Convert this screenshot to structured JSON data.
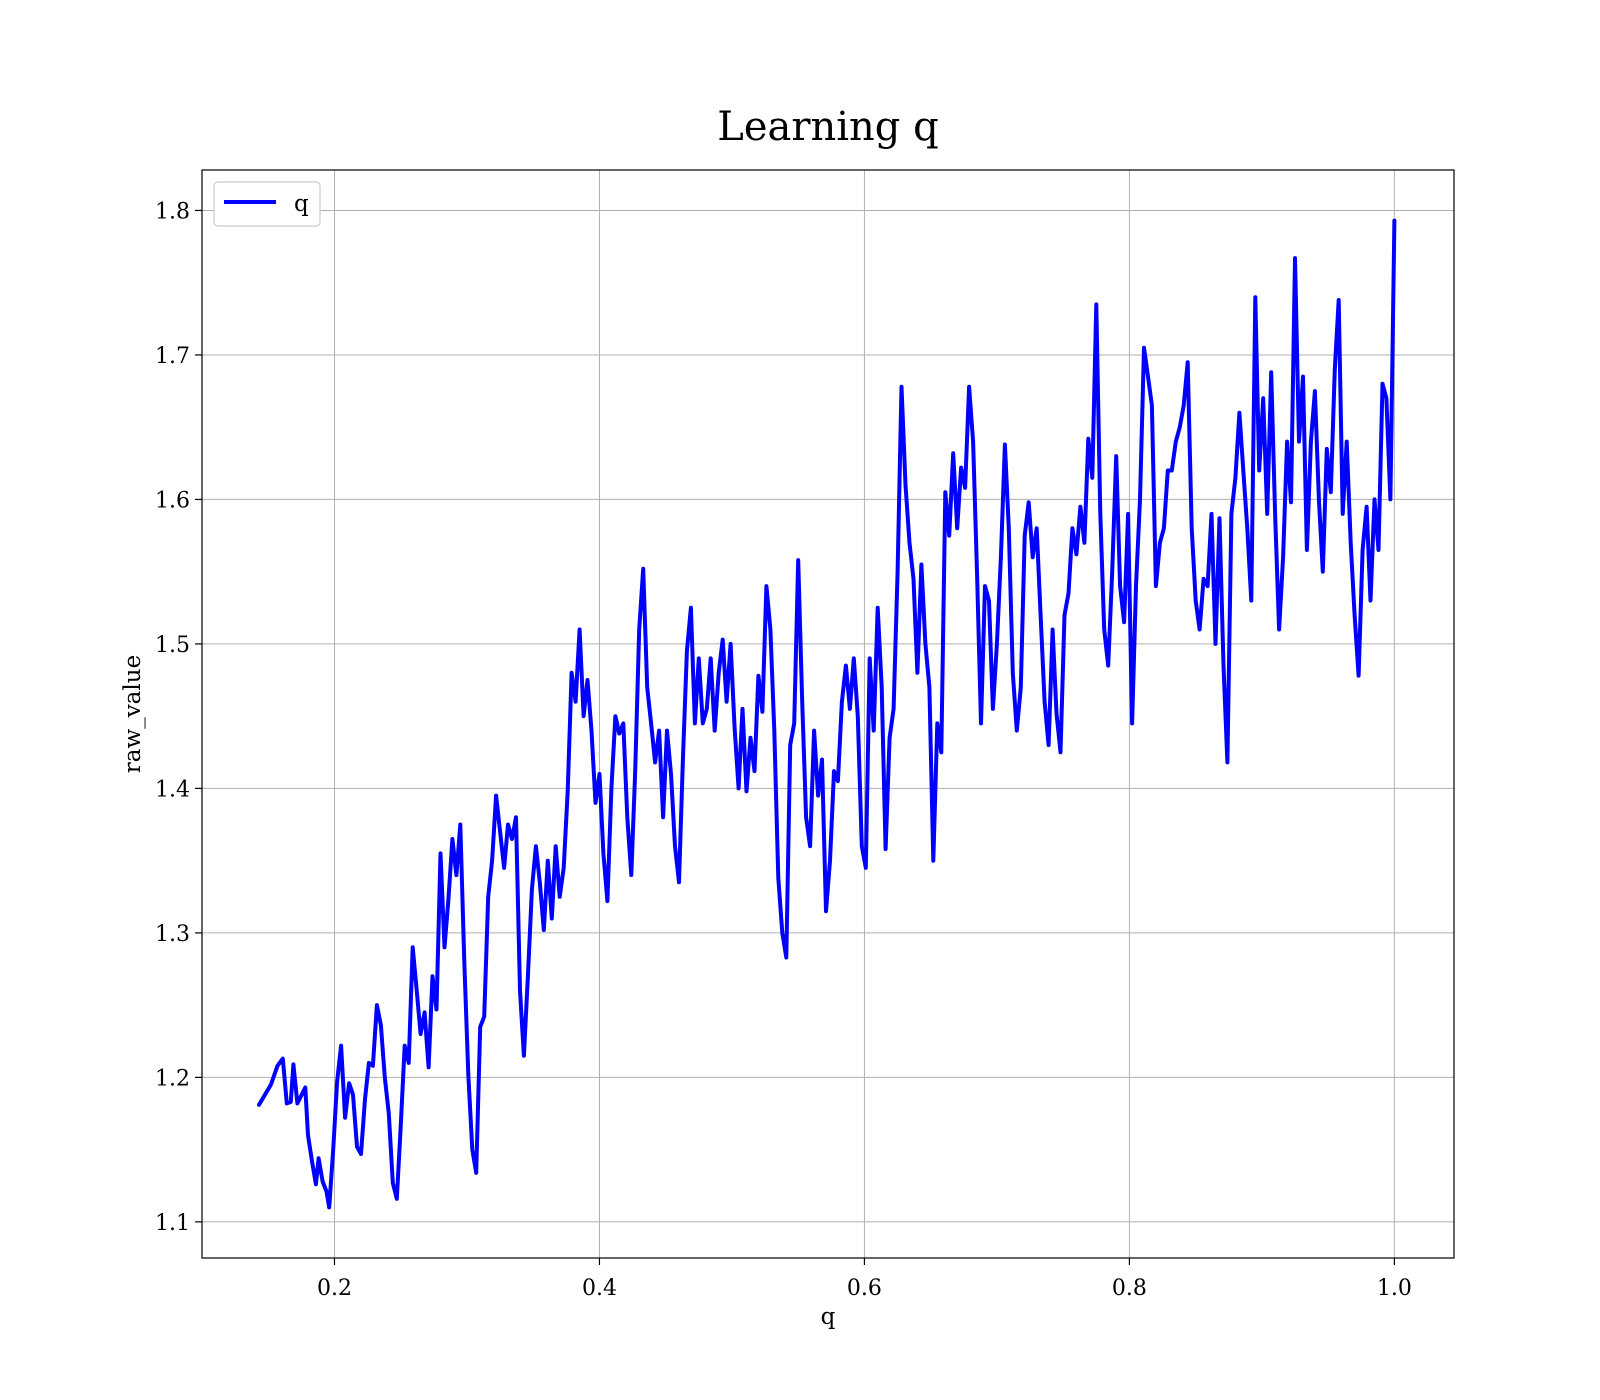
{
  "chart_data": {
    "type": "line",
    "title": "Learning q",
    "xlabel": "q",
    "ylabel": "raw_value",
    "xlim": [
      0.1,
      1.045
    ],
    "ylim": [
      1.075,
      1.828
    ],
    "xticks": [
      0.2,
      0.4,
      0.6,
      0.8,
      1.0
    ],
    "xtick_labels": [
      "0.2",
      "0.4",
      "0.6",
      "0.8",
      "1.0"
    ],
    "yticks": [
      1.1,
      1.2,
      1.3,
      1.4,
      1.5,
      1.6,
      1.7,
      1.8
    ],
    "ytick_labels": [
      "1.1",
      "1.2",
      "1.3",
      "1.4",
      "1.5",
      "1.6",
      "1.7",
      "1.8"
    ],
    "grid": true,
    "legend_position": "upper-left",
    "series": [
      {
        "name": "q",
        "color": "#0000ff",
        "points": [
          [
            0.143,
            1.181
          ],
          [
            0.152,
            1.195
          ],
          [
            0.157,
            1.208
          ],
          [
            0.161,
            1.213
          ],
          [
            0.164,
            1.182
          ],
          [
            0.167,
            1.183
          ],
          [
            0.169,
            1.209
          ],
          [
            0.172,
            1.182
          ],
          [
            0.178,
            1.193
          ],
          [
            0.18,
            1.16
          ],
          [
            0.183,
            1.142
          ],
          [
            0.186,
            1.126
          ],
          [
            0.188,
            1.144
          ],
          [
            0.191,
            1.128
          ],
          [
            0.194,
            1.121
          ],
          [
            0.196,
            1.11
          ],
          [
            0.199,
            1.15
          ],
          [
            0.202,
            1.197
          ],
          [
            0.205,
            1.222
          ],
          [
            0.208,
            1.172
          ],
          [
            0.211,
            1.196
          ],
          [
            0.214,
            1.188
          ],
          [
            0.217,
            1.152
          ],
          [
            0.22,
            1.147
          ],
          [
            0.223,
            1.185
          ],
          [
            0.226,
            1.21
          ],
          [
            0.229,
            1.208
          ],
          [
            0.232,
            1.25
          ],
          [
            0.235,
            1.236
          ],
          [
            0.238,
            1.2
          ],
          [
            0.241,
            1.175
          ],
          [
            0.244,
            1.127
          ],
          [
            0.247,
            1.116
          ],
          [
            0.25,
            1.166
          ],
          [
            0.253,
            1.222
          ],
          [
            0.256,
            1.21
          ],
          [
            0.259,
            1.29
          ],
          [
            0.262,
            1.261
          ],
          [
            0.265,
            1.23
          ],
          [
            0.268,
            1.245
          ],
          [
            0.271,
            1.207
          ],
          [
            0.274,
            1.27
          ],
          [
            0.277,
            1.247
          ],
          [
            0.28,
            1.355
          ],
          [
            0.283,
            1.29
          ],
          [
            0.286,
            1.323
          ],
          [
            0.289,
            1.365
          ],
          [
            0.292,
            1.34
          ],
          [
            0.295,
            1.375
          ],
          [
            0.298,
            1.28
          ],
          [
            0.301,
            1.202
          ],
          [
            0.304,
            1.15
          ],
          [
            0.307,
            1.134
          ],
          [
            0.31,
            1.235
          ],
          [
            0.313,
            1.242
          ],
          [
            0.316,
            1.325
          ],
          [
            0.319,
            1.35
          ],
          [
            0.322,
            1.395
          ],
          [
            0.325,
            1.37
          ],
          [
            0.328,
            1.345
          ],
          [
            0.331,
            1.375
          ],
          [
            0.334,
            1.365
          ],
          [
            0.337,
            1.38
          ],
          [
            0.34,
            1.26
          ],
          [
            0.343,
            1.215
          ],
          [
            0.346,
            1.27
          ],
          [
            0.349,
            1.33
          ],
          [
            0.352,
            1.36
          ],
          [
            0.355,
            1.335
          ],
          [
            0.358,
            1.302
          ],
          [
            0.361,
            1.35
          ],
          [
            0.364,
            1.31
          ],
          [
            0.367,
            1.36
          ],
          [
            0.37,
            1.325
          ],
          [
            0.373,
            1.345
          ],
          [
            0.376,
            1.398
          ],
          [
            0.379,
            1.48
          ],
          [
            0.382,
            1.46
          ],
          [
            0.385,
            1.51
          ],
          [
            0.388,
            1.45
          ],
          [
            0.391,
            1.475
          ],
          [
            0.394,
            1.44
          ],
          [
            0.397,
            1.39
          ],
          [
            0.4,
            1.41
          ],
          [
            0.403,
            1.355
          ],
          [
            0.406,
            1.322
          ],
          [
            0.409,
            1.4
          ],
          [
            0.412,
            1.45
          ],
          [
            0.415,
            1.438
          ],
          [
            0.418,
            1.445
          ],
          [
            0.421,
            1.38
          ],
          [
            0.424,
            1.34
          ],
          [
            0.427,
            1.412
          ],
          [
            0.43,
            1.51
          ],
          [
            0.433,
            1.552
          ],
          [
            0.436,
            1.47
          ],
          [
            0.439,
            1.445
          ],
          [
            0.442,
            1.418
          ],
          [
            0.445,
            1.44
          ],
          [
            0.448,
            1.38
          ],
          [
            0.451,
            1.44
          ],
          [
            0.454,
            1.41
          ],
          [
            0.457,
            1.36
          ],
          [
            0.46,
            1.335
          ],
          [
            0.463,
            1.42
          ],
          [
            0.466,
            1.495
          ],
          [
            0.469,
            1.525
          ],
          [
            0.472,
            1.445
          ],
          [
            0.475,
            1.49
          ],
          [
            0.478,
            1.445
          ],
          [
            0.481,
            1.455
          ],
          [
            0.484,
            1.49
          ],
          [
            0.487,
            1.44
          ],
          [
            0.49,
            1.48
          ],
          [
            0.493,
            1.503
          ],
          [
            0.496,
            1.46
          ],
          [
            0.499,
            1.5
          ],
          [
            0.502,
            1.442
          ],
          [
            0.505,
            1.4
          ],
          [
            0.508,
            1.455
          ],
          [
            0.511,
            1.398
          ],
          [
            0.514,
            1.435
          ],
          [
            0.517,
            1.412
          ],
          [
            0.52,
            1.478
          ],
          [
            0.523,
            1.453
          ],
          [
            0.526,
            1.54
          ],
          [
            0.529,
            1.51
          ],
          [
            0.532,
            1.44
          ],
          [
            0.535,
            1.338
          ],
          [
            0.538,
            1.3
          ],
          [
            0.541,
            1.283
          ],
          [
            0.544,
            1.43
          ],
          [
            0.547,
            1.445
          ],
          [
            0.55,
            1.558
          ],
          [
            0.553,
            1.46
          ],
          [
            0.556,
            1.38
          ],
          [
            0.559,
            1.36
          ],
          [
            0.562,
            1.44
          ],
          [
            0.565,
            1.395
          ],
          [
            0.568,
            1.42
          ],
          [
            0.571,
            1.315
          ],
          [
            0.574,
            1.35
          ],
          [
            0.577,
            1.412
          ],
          [
            0.58,
            1.405
          ],
          [
            0.583,
            1.46
          ],
          [
            0.586,
            1.485
          ],
          [
            0.589,
            1.455
          ],
          [
            0.592,
            1.49
          ],
          [
            0.595,
            1.45
          ],
          [
            0.598,
            1.36
          ],
          [
            0.601,
            1.345
          ],
          [
            0.604,
            1.49
          ],
          [
            0.607,
            1.44
          ],
          [
            0.61,
            1.525
          ],
          [
            0.613,
            1.47
          ],
          [
            0.616,
            1.358
          ],
          [
            0.619,
            1.435
          ],
          [
            0.622,
            1.455
          ],
          [
            0.625,
            1.55
          ],
          [
            0.628,
            1.678
          ],
          [
            0.631,
            1.61
          ],
          [
            0.634,
            1.57
          ],
          [
            0.637,
            1.545
          ],
          [
            0.64,
            1.48
          ],
          [
            0.643,
            1.555
          ],
          [
            0.646,
            1.5
          ],
          [
            0.649,
            1.47
          ],
          [
            0.652,
            1.35
          ],
          [
            0.655,
            1.445
          ],
          [
            0.658,
            1.425
          ],
          [
            0.661,
            1.605
          ],
          [
            0.664,
            1.575
          ],
          [
            0.667,
            1.632
          ],
          [
            0.67,
            1.58
          ],
          [
            0.673,
            1.622
          ],
          [
            0.676,
            1.608
          ],
          [
            0.679,
            1.678
          ],
          [
            0.682,
            1.64
          ],
          [
            0.685,
            1.55
          ],
          [
            0.688,
            1.445
          ],
          [
            0.691,
            1.54
          ],
          [
            0.694,
            1.53
          ],
          [
            0.697,
            1.455
          ],
          [
            0.7,
            1.5
          ],
          [
            0.703,
            1.56
          ],
          [
            0.706,
            1.638
          ],
          [
            0.709,
            1.58
          ],
          [
            0.712,
            1.48
          ],
          [
            0.715,
            1.44
          ],
          [
            0.718,
            1.47
          ],
          [
            0.721,
            1.575
          ],
          [
            0.724,
            1.598
          ],
          [
            0.727,
            1.56
          ],
          [
            0.73,
            1.58
          ],
          [
            0.733,
            1.52
          ],
          [
            0.736,
            1.46
          ],
          [
            0.739,
            1.43
          ],
          [
            0.742,
            1.51
          ],
          [
            0.745,
            1.452
          ],
          [
            0.748,
            1.425
          ],
          [
            0.751,
            1.52
          ],
          [
            0.754,
            1.535
          ],
          [
            0.757,
            1.58
          ],
          [
            0.76,
            1.562
          ],
          [
            0.763,
            1.595
          ],
          [
            0.766,
            1.57
          ],
          [
            0.769,
            1.642
          ],
          [
            0.772,
            1.615
          ],
          [
            0.775,
            1.735
          ],
          [
            0.778,
            1.59
          ],
          [
            0.781,
            1.51
          ],
          [
            0.784,
            1.485
          ],
          [
            0.787,
            1.55
          ],
          [
            0.79,
            1.63
          ],
          [
            0.793,
            1.54
          ],
          [
            0.796,
            1.515
          ],
          [
            0.799,
            1.59
          ],
          [
            0.802,
            1.445
          ],
          [
            0.805,
            1.54
          ],
          [
            0.808,
            1.6
          ],
          [
            0.811,
            1.705
          ],
          [
            0.814,
            1.685
          ],
          [
            0.817,
            1.665
          ],
          [
            0.82,
            1.54
          ],
          [
            0.823,
            1.57
          ],
          [
            0.826,
            1.58
          ],
          [
            0.829,
            1.62
          ],
          [
            0.832,
            1.62
          ],
          [
            0.835,
            1.64
          ],
          [
            0.838,
            1.65
          ],
          [
            0.841,
            1.665
          ],
          [
            0.844,
            1.695
          ],
          [
            0.847,
            1.58
          ],
          [
            0.85,
            1.53
          ],
          [
            0.853,
            1.51
          ],
          [
            0.856,
            1.545
          ],
          [
            0.859,
            1.54
          ],
          [
            0.862,
            1.59
          ],
          [
            0.865,
            1.5
          ],
          [
            0.868,
            1.587
          ],
          [
            0.871,
            1.485
          ],
          [
            0.874,
            1.418
          ],
          [
            0.877,
            1.59
          ],
          [
            0.88,
            1.615
          ],
          [
            0.883,
            1.66
          ],
          [
            0.886,
            1.62
          ],
          [
            0.889,
            1.58
          ],
          [
            0.892,
            1.53
          ],
          [
            0.895,
            1.74
          ],
          [
            0.898,
            1.62
          ],
          [
            0.901,
            1.67
          ],
          [
            0.904,
            1.59
          ],
          [
            0.907,
            1.688
          ],
          [
            0.91,
            1.59
          ],
          [
            0.913,
            1.51
          ],
          [
            0.916,
            1.56
          ],
          [
            0.919,
            1.64
          ],
          [
            0.922,
            1.598
          ],
          [
            0.925,
            1.767
          ],
          [
            0.928,
            1.64
          ],
          [
            0.931,
            1.685
          ],
          [
            0.934,
            1.565
          ],
          [
            0.937,
            1.64
          ],
          [
            0.94,
            1.675
          ],
          [
            0.943,
            1.6
          ],
          [
            0.946,
            1.55
          ],
          [
            0.949,
            1.635
          ],
          [
            0.952,
            1.605
          ],
          [
            0.955,
            1.69
          ],
          [
            0.958,
            1.738
          ],
          [
            0.961,
            1.59
          ],
          [
            0.964,
            1.64
          ],
          [
            0.967,
            1.57
          ],
          [
            0.97,
            1.52
          ],
          [
            0.973,
            1.478
          ],
          [
            0.976,
            1.565
          ],
          [
            0.979,
            1.595
          ],
          [
            0.982,
            1.53
          ],
          [
            0.985,
            1.6
          ],
          [
            0.988,
            1.565
          ],
          [
            0.991,
            1.68
          ],
          [
            0.994,
            1.67
          ],
          [
            0.997,
            1.6
          ],
          [
            1.0,
            1.793
          ]
        ]
      }
    ]
  }
}
